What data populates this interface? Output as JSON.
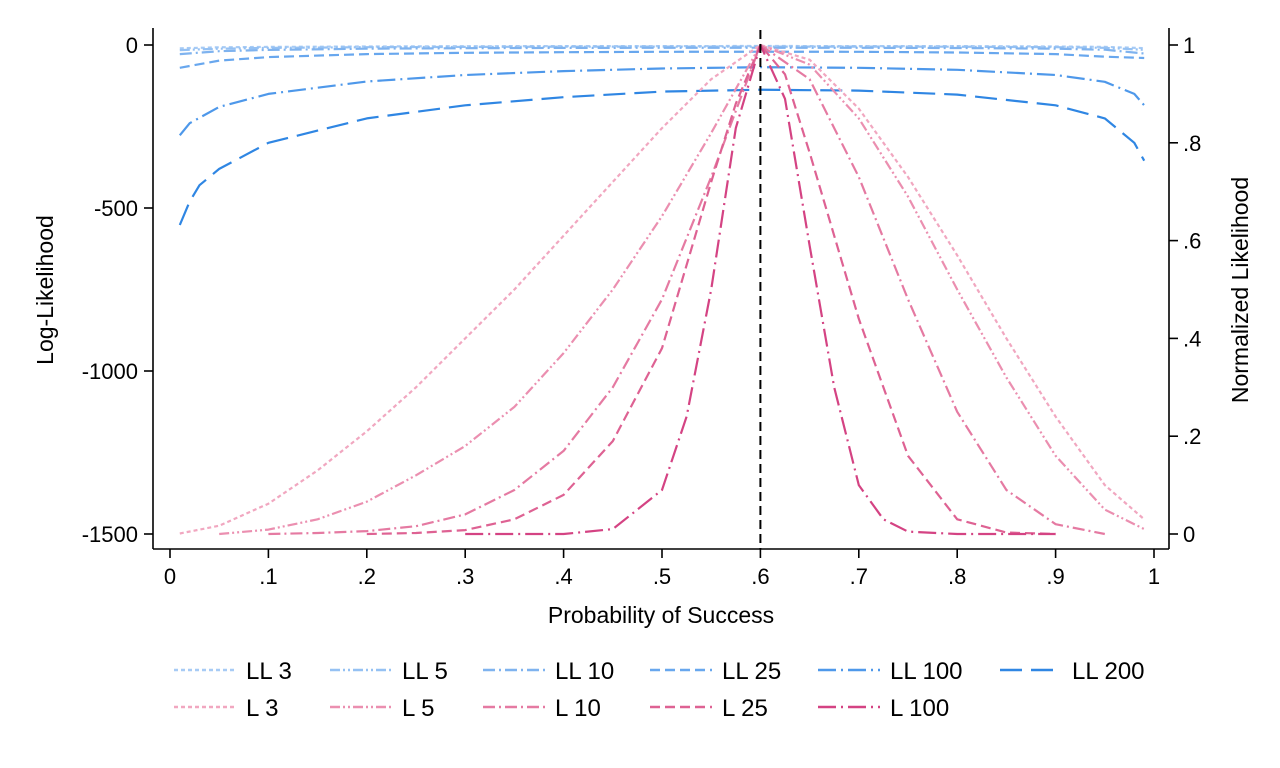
{
  "chart_data": {
    "type": "line",
    "title": "",
    "xlabel": "Probability of Success",
    "ylabel_left": "Log-Likelihood",
    "ylabel_right": "Normalized Likelihood",
    "xlim": [
      0,
      1
    ],
    "ylim_left": [
      -1500,
      0
    ],
    "ylim_right": [
      0,
      1
    ],
    "x_ticks": [
      "0",
      ".1",
      ".2",
      ".3",
      ".4",
      ".5",
      ".6",
      ".7",
      ".8",
      ".9",
      "1"
    ],
    "y_left_ticks": [
      "0",
      "-500",
      "-1000",
      "-1500"
    ],
    "y_right_ticks": [
      "0",
      ".2",
      ".4",
      ".6",
      ".8",
      "1"
    ],
    "reference_line_x": 0.6,
    "legend_position": "bottom",
    "grid": false,
    "colors": {
      "ll": [
        "#a7cbf5",
        "#95c1f3",
        "#7fb3ef",
        "#68a7ee",
        "#4e98ea",
        "#2f86e3"
      ],
      "l": [
        "#f1a7c0",
        "#eb8fb0",
        "#e57aa2",
        "#de6293",
        "#d44383"
      ],
      "ref": "#000000"
    },
    "series": [
      {
        "name": "LL 3",
        "axis": "left",
        "x": [
          0.01,
          0.05,
          0.1,
          0.2,
          0.3,
          0.4,
          0.5,
          0.6,
          0.7,
          0.8,
          0.9,
          0.95,
          0.99
        ],
        "y": [
          -10.2,
          -7.1,
          -5.8,
          -4.5,
          -3.8,
          -3.4,
          -3.3,
          -3.2,
          -3.3,
          -3.5,
          -4.5,
          -5.7,
          -9.4
        ]
      },
      {
        "name": "LL 5",
        "axis": "left",
        "x": [
          0.01,
          0.05,
          0.1,
          0.2,
          0.3,
          0.4,
          0.5,
          0.6,
          0.7,
          0.8,
          0.9,
          0.95,
          0.99
        ],
        "y": [
          -15.5,
          -11.3,
          -8.9,
          -6.7,
          -5.8,
          -5.2,
          -4.9,
          -4.8,
          -4.9,
          -5.2,
          -6.7,
          -8.6,
          -14.6
        ]
      },
      {
        "name": "LL 10",
        "axis": "left",
        "x": [
          0.01,
          0.05,
          0.1,
          0.2,
          0.3,
          0.4,
          0.5,
          0.6,
          0.7,
          0.8,
          0.9,
          0.95,
          0.99
        ],
        "y": [
          -28,
          -19,
          -15,
          -11.5,
          -9.8,
          -9,
          -8.5,
          -8.3,
          -8.5,
          -9.1,
          -11.5,
          -14.5,
          -26
        ]
      },
      {
        "name": "LL 25",
        "axis": "left",
        "x": [
          0.01,
          0.05,
          0.1,
          0.2,
          0.3,
          0.4,
          0.5,
          0.6,
          0.7,
          0.8,
          0.9,
          0.95,
          0.99
        ],
        "y": [
          -70,
          -48,
          -37,
          -28,
          -24,
          -22,
          -21,
          -20.5,
          -21,
          -23,
          -28,
          -36,
          -40
        ]
      },
      {
        "name": "LL 100",
        "axis": "left",
        "x": [
          0.01,
          0.02,
          0.05,
          0.1,
          0.2,
          0.3,
          0.4,
          0.5,
          0.6,
          0.7,
          0.8,
          0.9,
          0.95,
          0.98,
          0.99
        ],
        "y": [
          -277,
          -240,
          -190,
          -150,
          -112,
          -92,
          -80,
          -72,
          -68,
          -70,
          -76,
          -92,
          -113,
          -150,
          -185
        ]
      },
      {
        "name": "LL 200",
        "axis": "left",
        "x": [
          0.01,
          0.02,
          0.03,
          0.05,
          0.1,
          0.2,
          0.3,
          0.4,
          0.5,
          0.6,
          0.7,
          0.8,
          0.9,
          0.95,
          0.98,
          0.99
        ],
        "y": [
          -552,
          -480,
          -430,
          -380,
          -300,
          -225,
          -185,
          -160,
          -143,
          -137,
          -140,
          -152,
          -185,
          -225,
          -300,
          -355
        ]
      },
      {
        "name": "L 3",
        "axis": "right",
        "x": [
          0.01,
          0.05,
          0.1,
          0.15,
          0.2,
          0.25,
          0.3,
          0.35,
          0.4,
          0.45,
          0.5,
          0.55,
          0.6,
          0.65,
          0.7,
          0.75,
          0.8,
          0.85,
          0.9,
          0.95,
          0.99
        ],
        "y": [
          0.001,
          0.017,
          0.062,
          0.13,
          0.21,
          0.3,
          0.4,
          0.5,
          0.61,
          0.72,
          0.83,
          0.93,
          1.0,
          0.97,
          0.87,
          0.73,
          0.57,
          0.4,
          0.24,
          0.1,
          0.03
        ]
      },
      {
        "name": "L 5",
        "axis": "right",
        "x": [
          0.05,
          0.1,
          0.15,
          0.2,
          0.25,
          0.3,
          0.35,
          0.4,
          0.45,
          0.5,
          0.55,
          0.6,
          0.65,
          0.7,
          0.75,
          0.8,
          0.85,
          0.9,
          0.95,
          0.99
        ],
        "y": [
          0.0,
          0.009,
          0.03,
          0.066,
          0.12,
          0.18,
          0.26,
          0.37,
          0.5,
          0.65,
          0.82,
          1.0,
          0.96,
          0.85,
          0.69,
          0.5,
          0.32,
          0.16,
          0.05,
          0.01
        ]
      },
      {
        "name": "L 10",
        "axis": "right",
        "x": [
          0.1,
          0.15,
          0.2,
          0.25,
          0.3,
          0.35,
          0.4,
          0.45,
          0.5,
          0.55,
          0.6,
          0.65,
          0.7,
          0.75,
          0.8,
          0.85,
          0.9,
          0.95
        ],
        "y": [
          0.0,
          0.002,
          0.006,
          0.016,
          0.04,
          0.09,
          0.17,
          0.3,
          0.48,
          0.73,
          1.0,
          0.93,
          0.73,
          0.48,
          0.25,
          0.09,
          0.02,
          0.0
        ]
      },
      {
        "name": "L 25",
        "axis": "right",
        "x": [
          0.2,
          0.25,
          0.3,
          0.35,
          0.4,
          0.45,
          0.5,
          0.55,
          0.575,
          0.6,
          0.625,
          0.65,
          0.7,
          0.75,
          0.8,
          0.85,
          0.9
        ],
        "y": [
          0.0,
          0.002,
          0.008,
          0.03,
          0.08,
          0.19,
          0.38,
          0.72,
          0.88,
          1.0,
          0.94,
          0.78,
          0.44,
          0.16,
          0.03,
          0.003,
          0.0
        ]
      },
      {
        "name": "L 100",
        "axis": "right",
        "x": [
          0.3,
          0.4,
          0.45,
          0.5,
          0.525,
          0.55,
          0.575,
          0.6,
          0.625,
          0.65,
          0.675,
          0.7,
          0.725,
          0.75,
          0.8,
          0.9
        ],
        "y": [
          0.0,
          0.0,
          0.01,
          0.09,
          0.24,
          0.5,
          0.83,
          1.0,
          0.89,
          0.59,
          0.3,
          0.1,
          0.03,
          0.005,
          0.0,
          0.0
        ]
      }
    ]
  }
}
